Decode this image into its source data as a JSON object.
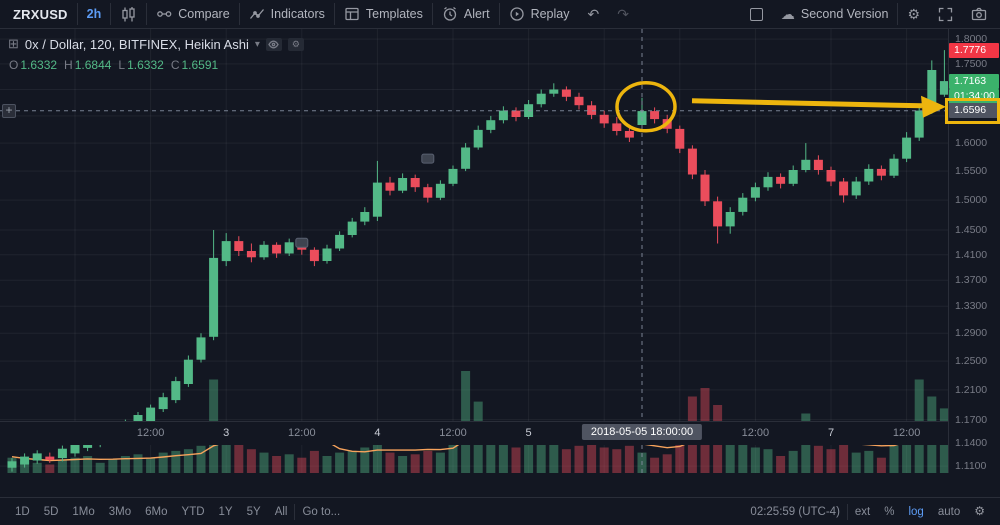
{
  "colors": {
    "background": "#131722",
    "up": "#53b987",
    "down": "#eb4d5c",
    "up_badge": "#3bb26b",
    "down_badge": "#f23645",
    "accent_blue": "#5d9cf5",
    "annotation_yellow": "#edb50e",
    "volume_ma_orange": "#f7a35c",
    "grid": "rgba(255,255,255,0.055)",
    "crosshair": "#8a93a6",
    "crosshair_badge_bg": "#4f5461",
    "axis_text": "#787b86"
  },
  "icons": {
    "cloud": "☁",
    "gear": "⚙",
    "undo": "↶",
    "redo": "↷",
    "plus": "+",
    "caret": "▾",
    "grid": "⊞"
  },
  "top_toolbar": {
    "symbol": "ZRXUSD",
    "interval": "2h",
    "compare": "Compare",
    "indicators": "Indicators",
    "templates": "Templates",
    "alert": "Alert",
    "replay": "Replay",
    "layout_name": "Second Version"
  },
  "legend": {
    "title": "0x / Dollar, 120, BITFINEX, Heikin Ashi",
    "ohlc": [
      {
        "label": "O",
        "value": "1.6332"
      },
      {
        "label": "H",
        "value": "1.6844"
      },
      {
        "label": "L",
        "value": "1.6332"
      },
      {
        "label": "C",
        "value": "1.6591"
      }
    ]
  },
  "price_axis": {
    "labels": [
      "1.8000",
      "1.7500",
      "1.6000",
      "1.5500",
      "1.5000",
      "1.4500",
      "1.4100",
      "1.3700",
      "1.3300",
      "1.2900",
      "1.2500",
      "1.2100",
      "1.1700",
      "1.1400",
      "1.1100"
    ],
    "badges": {
      "session_high": {
        "text": "1.7776",
        "price": 1.7776
      },
      "last_price": {
        "text": "1.7163",
        "price": 1.7163
      },
      "countdown": {
        "text": "01:34:00",
        "price": 1.7163
      },
      "crosshair_price": {
        "text": "1.6596",
        "price": 1.6596
      }
    }
  },
  "time_axis": {
    "crosshair_label": "2018-05-05 18:00:00"
  },
  "bottom_toolbar": {
    "ranges": [
      "1D",
      "5D",
      "1Mo",
      "3Mo",
      "6Mo",
      "YTD",
      "1Y",
      "5Y",
      "All"
    ],
    "goto": "Go to...",
    "clock": "02:25:59 (UTC-4)",
    "buttons": [
      "ext",
      "%",
      "log",
      "auto"
    ],
    "active_button": "log"
  },
  "chart_data": {
    "type": "candlestick",
    "chart_style": "Heikin Ashi",
    "symbol": "ZRXUSD",
    "exchange": "BITFINEX",
    "interval": "120",
    "yscale": "log",
    "ylim": [
      1.1038,
      1.8165
    ],
    "x_axis_ticks": [
      {
        "i": 11,
        "label": "12:00"
      },
      {
        "i": 17,
        "label": "3",
        "day": true
      },
      {
        "i": 23,
        "label": "12:00"
      },
      {
        "i": 29,
        "label": "4",
        "day": true
      },
      {
        "i": 35,
        "label": "12:00"
      },
      {
        "i": 41,
        "label": "5",
        "day": true
      },
      {
        "i": 59,
        "label": "12:00"
      },
      {
        "i": 65,
        "label": "7",
        "day": true
      },
      {
        "i": 71,
        "label": "12:00"
      }
    ],
    "grid_indices": [
      5,
      11,
      17,
      23,
      29,
      35,
      41,
      47,
      53,
      59,
      65,
      71
    ],
    "gridline_prices": [
      1.8,
      1.75,
      1.7,
      1.65,
      1.6,
      1.55,
      1.5,
      1.45,
      1.41,
      1.37,
      1.33,
      1.29,
      1.25,
      1.21,
      1.17,
      1.14,
      1.11
    ],
    "volume_ma_window": 10,
    "crosshair": {
      "index": 50,
      "price": 1.6596
    },
    "highlight": {
      "circle_index": 50,
      "arrow_to_price": 1.6596
    },
    "markers": [
      {
        "i": 23,
        "price": 1.43
      },
      {
        "i": 33,
        "price": 1.573
      }
    ],
    "candles": [
      [
        1.108,
        1.12,
        1.103,
        1.116,
        9
      ],
      [
        1.112,
        1.126,
        1.108,
        1.122,
        7
      ],
      [
        1.117,
        1.13,
        1.113,
        1.126,
        6
      ],
      [
        1.122,
        1.127,
        1.114,
        1.118,
        5
      ],
      [
        1.12,
        1.136,
        1.116,
        1.132,
        8
      ],
      [
        1.126,
        1.144,
        1.122,
        1.14,
        9
      ],
      [
        1.133,
        1.152,
        1.129,
        1.148,
        10
      ],
      [
        1.14,
        1.15,
        1.134,
        1.144,
        6
      ],
      [
        1.142,
        1.16,
        1.138,
        1.156,
        8
      ],
      [
        1.149,
        1.17,
        1.145,
        1.166,
        10
      ],
      [
        1.157,
        1.18,
        1.153,
        1.176,
        11
      ],
      [
        1.166,
        1.19,
        1.162,
        1.186,
        9
      ],
      [
        1.184,
        1.206,
        1.18,
        1.2,
        12
      ],
      [
        1.196,
        1.228,
        1.192,
        1.222,
        13
      ],
      [
        1.218,
        1.258,
        1.214,
        1.252,
        14
      ],
      [
        1.252,
        1.29,
        1.248,
        1.284,
        16
      ],
      [
        1.285,
        1.45,
        1.28,
        1.405,
        55
      ],
      [
        1.4,
        1.445,
        1.392,
        1.432,
        28
      ],
      [
        1.432,
        1.44,
        1.408,
        1.416,
        18
      ],
      [
        1.416,
        1.428,
        1.398,
        1.406,
        14
      ],
      [
        1.406,
        1.432,
        1.402,
        1.426,
        12
      ],
      [
        1.426,
        1.43,
        1.405,
        1.412,
        10
      ],
      [
        1.412,
        1.436,
        1.408,
        1.43,
        11
      ],
      [
        1.43,
        1.434,
        1.41,
        1.418,
        9
      ],
      [
        1.418,
        1.422,
        1.392,
        1.4,
        13
      ],
      [
        1.4,
        1.426,
        1.396,
        1.42,
        10
      ],
      [
        1.42,
        1.448,
        1.416,
        1.442,
        12
      ],
      [
        1.442,
        1.47,
        1.438,
        1.464,
        13
      ],
      [
        1.464,
        1.488,
        1.458,
        1.48,
        15
      ],
      [
        1.472,
        1.568,
        1.465,
        1.53,
        24
      ],
      [
        1.53,
        1.54,
        1.508,
        1.516,
        12
      ],
      [
        1.516,
        1.546,
        1.512,
        1.538,
        10
      ],
      [
        1.538,
        1.544,
        1.514,
        1.522,
        11
      ],
      [
        1.522,
        1.528,
        1.496,
        1.504,
        13
      ],
      [
        1.504,
        1.534,
        1.5,
        1.528,
        12
      ],
      [
        1.528,
        1.56,
        1.524,
        1.554,
        18
      ],
      [
        1.554,
        1.6,
        1.55,
        1.592,
        60
      ],
      [
        1.592,
        1.632,
        1.588,
        1.624,
        42
      ],
      [
        1.624,
        1.65,
        1.618,
        1.642,
        30
      ],
      [
        1.642,
        1.668,
        1.636,
        1.66,
        25
      ],
      [
        1.66,
        1.666,
        1.64,
        1.648,
        15
      ],
      [
        1.648,
        1.68,
        1.644,
        1.672,
        20
      ],
      [
        1.672,
        1.7,
        1.666,
        1.692,
        22
      ],
      [
        1.692,
        1.712,
        1.686,
        1.7,
        18
      ],
      [
        1.7,
        1.706,
        1.678,
        1.686,
        14
      ],
      [
        1.686,
        1.694,
        1.662,
        1.67,
        16
      ],
      [
        1.67,
        1.678,
        1.644,
        1.652,
        18
      ],
      [
        1.652,
        1.66,
        1.628,
        1.636,
        15
      ],
      [
        1.636,
        1.648,
        1.614,
        1.622,
        14
      ],
      [
        1.622,
        1.634,
        1.602,
        1.61,
        16
      ],
      [
        1.6332,
        1.6844,
        1.6332,
        1.6591,
        12
      ],
      [
        1.659,
        1.666,
        1.636,
        1.644,
        9
      ],
      [
        1.644,
        1.652,
        1.618,
        1.626,
        11
      ],
      [
        1.626,
        1.632,
        1.582,
        1.59,
        25
      ],
      [
        1.59,
        1.596,
        1.536,
        1.544,
        45
      ],
      [
        1.544,
        1.552,
        1.49,
        1.498,
        50
      ],
      [
        1.498,
        1.506,
        1.428,
        1.456,
        40
      ],
      [
        1.456,
        1.488,
        1.444,
        1.48,
        22
      ],
      [
        1.48,
        1.512,
        1.474,
        1.504,
        18
      ],
      [
        1.504,
        1.53,
        1.498,
        1.522,
        15
      ],
      [
        1.522,
        1.548,
        1.516,
        1.54,
        14
      ],
      [
        1.54,
        1.546,
        1.52,
        1.528,
        10
      ],
      [
        1.528,
        1.56,
        1.524,
        1.552,
        13
      ],
      [
        1.552,
        1.6,
        1.548,
        1.57,
        35
      ],
      [
        1.57,
        1.578,
        1.544,
        1.552,
        16
      ],
      [
        1.552,
        1.558,
        1.524,
        1.532,
        14
      ],
      [
        1.532,
        1.538,
        1.496,
        1.508,
        18
      ],
      [
        1.508,
        1.54,
        1.502,
        1.532,
        12
      ],
      [
        1.532,
        1.562,
        1.526,
        1.554,
        13
      ],
      [
        1.554,
        1.56,
        1.534,
        1.542,
        9
      ],
      [
        1.542,
        1.58,
        1.538,
        1.572,
        16
      ],
      [
        1.572,
        1.62,
        1.566,
        1.61,
        30
      ],
      [
        1.61,
        1.672,
        1.604,
        1.66,
        55
      ],
      [
        1.66,
        1.757,
        1.654,
        1.738,
        45
      ],
      [
        1.69,
        1.7776,
        1.686,
        1.7163,
        38
      ]
    ]
  }
}
